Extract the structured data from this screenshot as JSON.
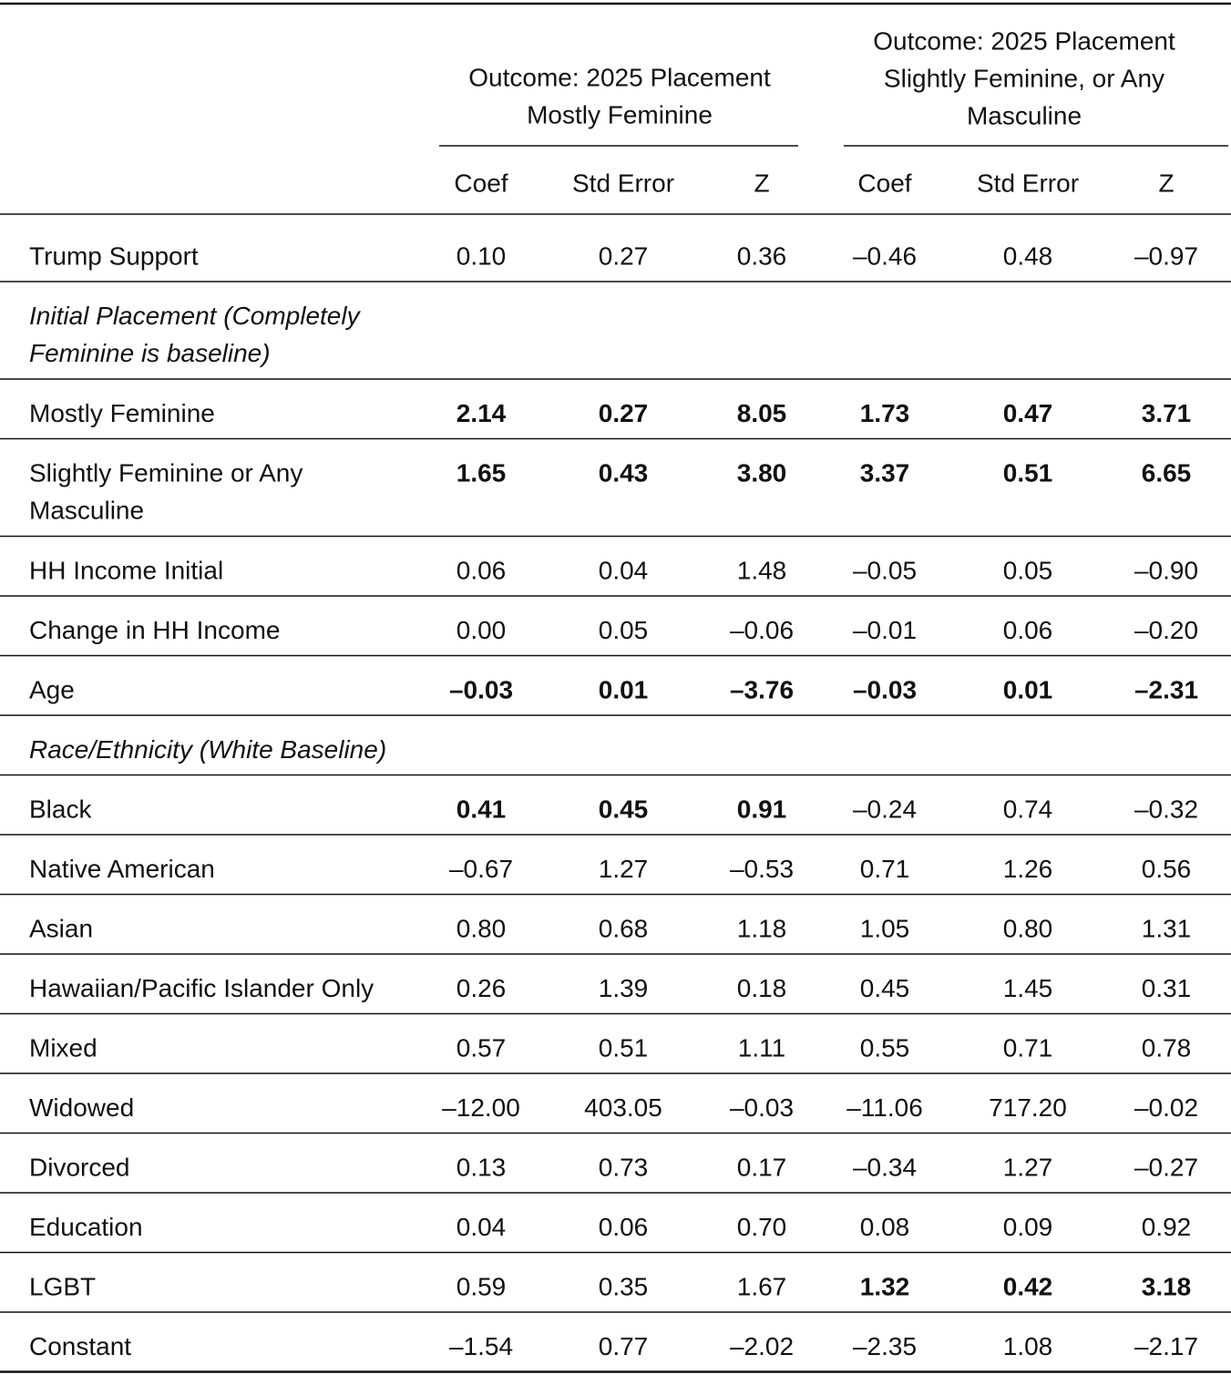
{
  "table": {
    "groups": [
      {
        "lines": [
          "Outcome: 2025 Placement",
          "Mostly Feminine"
        ]
      },
      {
        "lines": [
          "Outcome: 2025 Placement",
          "Slightly Feminine, or Any",
          "Masculine"
        ]
      }
    ],
    "columns": [
      "Coef",
      "Std Error",
      "Z",
      "Coef",
      "Std Error",
      "Z"
    ],
    "rows": [
      {
        "label": [
          "Trump Support"
        ],
        "cells": [
          "0.10",
          "0.27",
          "0.36",
          "–0.46",
          "0.48",
          "–0.97"
        ]
      },
      {
        "label": [
          "Initial Placement (Completely",
          "Feminine is baseline)"
        ],
        "italic": true
      },
      {
        "label": [
          "Mostly Feminine"
        ],
        "cells": [
          "2.14",
          "0.27",
          "8.05",
          "1.73",
          "0.47",
          "3.71"
        ],
        "bold": [
          true,
          true,
          true,
          true,
          true,
          true
        ]
      },
      {
        "label": [
          "Slightly Feminine or Any",
          "Masculine"
        ],
        "cells": [
          "1.65",
          "0.43",
          "3.80",
          "3.37",
          "0.51",
          "6.65"
        ],
        "bold": [
          true,
          true,
          true,
          true,
          true,
          true
        ]
      },
      {
        "label": [
          "HH Income Initial"
        ],
        "cells": [
          "0.06",
          "0.04",
          "1.48",
          "–0.05",
          "0.05",
          "–0.90"
        ]
      },
      {
        "label": [
          "Change in HH Income"
        ],
        "cells": [
          "0.00",
          "0.05",
          "–0.06",
          "–0.01",
          "0.06",
          "–0.20"
        ]
      },
      {
        "label": [
          "Age"
        ],
        "cells": [
          "–0.03",
          "0.01",
          "–3.76",
          "–0.03",
          "0.01",
          "–2.31"
        ],
        "bold": [
          true,
          true,
          true,
          true,
          true,
          true
        ]
      },
      {
        "label": [
          "Race/Ethnicity (White Baseline)"
        ],
        "italic": true
      },
      {
        "label": [
          "Black"
        ],
        "cells": [
          "0.41",
          "0.45",
          "0.91",
          "–0.24",
          "0.74",
          "–0.32"
        ],
        "bold": [
          true,
          true,
          true,
          false,
          false,
          false
        ]
      },
      {
        "label": [
          "Native American"
        ],
        "cells": [
          "–0.67",
          "1.27",
          "–0.53",
          "0.71",
          "1.26",
          "0.56"
        ]
      },
      {
        "label": [
          "Asian"
        ],
        "cells": [
          "0.80",
          "0.68",
          "1.18",
          "1.05",
          "0.80",
          "1.31"
        ]
      },
      {
        "label": [
          "Hawaiian/Pacific Islander Only"
        ],
        "cells": [
          "0.26",
          "1.39",
          "0.18",
          "0.45",
          "1.45",
          "0.31"
        ]
      },
      {
        "label": [
          "Mixed"
        ],
        "cells": [
          "0.57",
          "0.51",
          "1.11",
          "0.55",
          "0.71",
          "0.78"
        ]
      },
      {
        "label": [
          "Widowed"
        ],
        "cells": [
          "–12.00",
          "403.05",
          "–0.03",
          "–11.06",
          "717.20",
          "–0.02"
        ]
      },
      {
        "label": [
          "Divorced"
        ],
        "cells": [
          "0.13",
          "0.73",
          "0.17",
          "–0.34",
          "1.27",
          "–0.27"
        ]
      },
      {
        "label": [
          "Education"
        ],
        "cells": [
          "0.04",
          "0.06",
          "0.70",
          "0.08",
          "0.09",
          "0.92"
        ]
      },
      {
        "label": [
          "LGBT"
        ],
        "cells": [
          "0.59",
          "0.35",
          "1.67",
          "1.32",
          "0.42",
          "3.18"
        ],
        "bold": [
          false,
          false,
          false,
          true,
          true,
          true
        ]
      },
      {
        "label": [
          "Constant"
        ],
        "cells": [
          "–1.54",
          "0.77",
          "–2.02",
          "–2.35",
          "1.08",
          "–2.17"
        ]
      }
    ]
  }
}
